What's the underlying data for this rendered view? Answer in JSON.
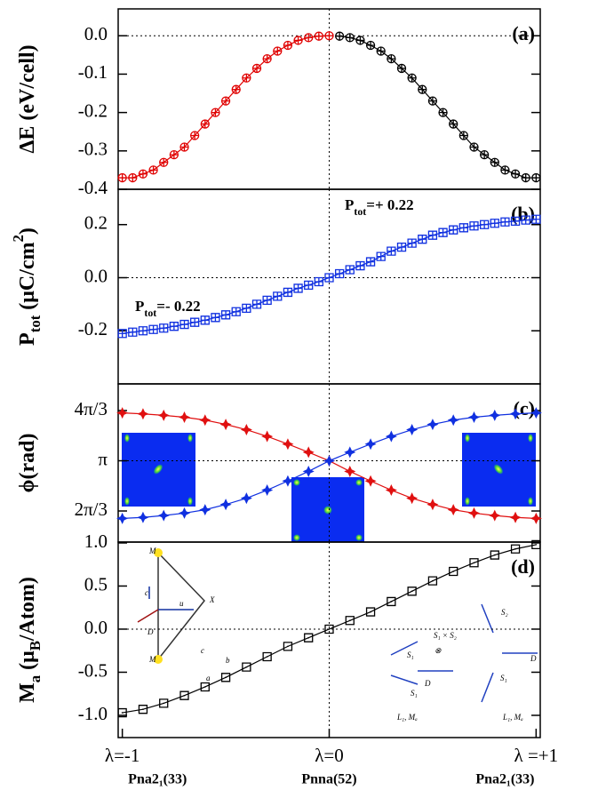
{
  "chart_data": [
    {
      "type": "line",
      "panel": "(a)",
      "ylabel": [
        {
          "text": "ΔE (eV/cell)"
        }
      ],
      "xlim": [
        -1.02,
        1.02
      ],
      "ylim": [
        -0.4,
        0.07
      ],
      "yticks": [
        {
          "value": 0,
          "label": "0.0"
        },
        -0.1,
        -0.2,
        -0.3,
        -0.4
      ],
      "hline": 0,
      "vline": 0,
      "series": [
        {
          "color": "#e00000",
          "marker": "circle",
          "x": [
            -1,
            -0.95,
            -0.9,
            -0.85,
            -0.8,
            -0.75,
            -0.7,
            -0.65,
            -0.6,
            -0.55,
            -0.5,
            -0.45,
            -0.4,
            -0.35,
            -0.3,
            -0.25,
            -0.2,
            -0.15,
            -0.1,
            -0.05,
            0
          ],
          "values": [
            -0.37,
            -0.37,
            -0.36,
            -0.35,
            -0.33,
            -0.31,
            -0.29,
            -0.26,
            -0.23,
            -0.2,
            -0.17,
            -0.14,
            -0.11,
            -0.085,
            -0.06,
            -0.04,
            -0.025,
            -0.012,
            -0.005,
            -0.001,
            0
          ]
        },
        {
          "color": "#000000",
          "marker": "circle",
          "x": [
            0.05,
            0.1,
            0.15,
            0.2,
            0.25,
            0.3,
            0.35,
            0.4,
            0.45,
            0.5,
            0.55,
            0.6,
            0.65,
            0.7,
            0.75,
            0.8,
            0.85,
            0.9,
            0.95,
            1
          ],
          "values": [
            -0.001,
            -0.005,
            -0.012,
            -0.025,
            -0.04,
            -0.06,
            -0.085,
            -0.11,
            -0.14,
            -0.17,
            -0.2,
            -0.23,
            -0.26,
            -0.29,
            -0.31,
            -0.33,
            -0.35,
            -0.36,
            -0.37,
            -0.37
          ]
        }
      ]
    },
    {
      "type": "line",
      "panel": "(b)",
      "ylabel": [
        {
          "text": "P"
        },
        {
          "sub": "tot"
        },
        {
          "text": " (μC/cm"
        },
        {
          "sup": "2"
        },
        {
          "text": ")"
        }
      ],
      "xlim": [
        -1.02,
        1.02
      ],
      "ylim": [
        -0.4,
        0.333
      ],
      "yticks": [
        0.2,
        {
          "value": 0,
          "label": "0.0"
        },
        -0.2
      ],
      "hline": 0,
      "vline": 0,
      "annotations": [
        [
          {
            "text": "P"
          },
          {
            "sub": "tot"
          },
          {
            "text": "=+ 0.22"
          }
        ],
        [
          {
            "text": "P"
          },
          {
            "sub": "tot"
          },
          {
            "text": "=- 0.22"
          }
        ]
      ],
      "series": [
        {
          "color": "#1030e0",
          "marker": "square",
          "x": [
            -1,
            -0.95,
            -0.9,
            -0.85,
            -0.8,
            -0.75,
            -0.7,
            -0.65,
            -0.6,
            -0.55,
            -0.5,
            -0.45,
            -0.4,
            -0.35,
            -0.3,
            -0.25,
            -0.2,
            -0.15,
            -0.1,
            -0.05,
            0,
            0.05,
            0.1,
            0.15,
            0.2,
            0.25,
            0.3,
            0.35,
            0.4,
            0.45,
            0.5,
            0.55,
            0.6,
            0.65,
            0.7,
            0.75,
            0.8,
            0.85,
            0.9,
            0.95,
            1
          ],
          "values": [
            -0.21,
            -0.205,
            -0.2,
            -0.195,
            -0.19,
            -0.183,
            -0.176,
            -0.168,
            -0.16,
            -0.15,
            -0.14,
            -0.128,
            -0.115,
            -0.1,
            -0.085,
            -0.07,
            -0.055,
            -0.04,
            -0.028,
            -0.015,
            0,
            0.015,
            0.03,
            0.045,
            0.06,
            0.08,
            0.1,
            0.115,
            0.13,
            0.145,
            0.16,
            0.17,
            0.18,
            0.188,
            0.195,
            0.2,
            0.205,
            0.21,
            0.213,
            0.217,
            0.22
          ]
        }
      ]
    },
    {
      "type": "line",
      "panel": "(c)",
      "ylabel": [
        {
          "text": "ϕ(rad)"
        }
      ],
      "ylabel_bold": false,
      "xlim": [
        -1.02,
        1.02
      ],
      "ylim": [
        1.446,
        4.745
      ],
      "yticks": [
        {
          "value": 4.18879,
          "label": "4π/3"
        },
        {
          "value": 3.14159,
          "label": "π"
        },
        {
          "value": 2.0944,
          "label": "2π/3"
        }
      ],
      "hline": 3.14159,
      "vline": 0,
      "series": [
        {
          "color": "#e01010",
          "marker": "star",
          "x": [
            -1,
            -0.9,
            -0.8,
            -0.7,
            -0.6,
            -0.5,
            -0.4,
            -0.3,
            -0.2,
            -0.1,
            0,
            0.1,
            0.2,
            0.3,
            0.4,
            0.5,
            0.6,
            0.7,
            0.8,
            0.9,
            1
          ],
          "values": [
            4.14,
            4.12,
            4.09,
            4.05,
            3.99,
            3.9,
            3.79,
            3.65,
            3.49,
            3.32,
            3.14,
            2.92,
            2.72,
            2.53,
            2.36,
            2.23,
            2.12,
            2.05,
            2.0,
            1.96,
            1.94
          ]
        },
        {
          "color": "#1030e0",
          "marker": "star",
          "x": [
            -1,
            -0.9,
            -0.8,
            -0.7,
            -0.6,
            -0.5,
            -0.4,
            -0.3,
            -0.2,
            -0.1,
            0,
            0.1,
            0.2,
            0.3,
            0.4,
            0.5,
            0.6,
            0.7,
            0.8,
            0.9,
            1
          ],
          "values": [
            1.94,
            1.96,
            2.0,
            2.05,
            2.12,
            2.23,
            2.36,
            2.53,
            2.72,
            2.92,
            3.14,
            3.32,
            3.49,
            3.65,
            3.79,
            3.9,
            3.99,
            4.05,
            4.09,
            4.12,
            4.14
          ]
        }
      ]
    },
    {
      "type": "line",
      "panel": "(d)",
      "ylabel": [
        {
          "text": "M"
        },
        {
          "sub": "a"
        },
        {
          "text": " (μ"
        },
        {
          "sub": "B"
        },
        {
          "text": "/Atom)"
        }
      ],
      "xlim": [
        -1.02,
        1.02
      ],
      "ylim": [
        -1.258,
        1.01
      ],
      "yticks": [
        {
          "value": 1,
          "label": "1.0"
        },
        0.5,
        {
          "value": 0,
          "label": "0.0"
        },
        -0.5,
        {
          "value": -1,
          "label": "-1.0"
        }
      ],
      "xticks": [
        {
          "value": -1,
          "label": "λ=-1"
        },
        {
          "value": 0,
          "label": "λ=0"
        },
        {
          "value": 1,
          "label": "λ =+1"
        }
      ],
      "xgroups": [
        "Pna2₁(33)",
        "Pnna(52)",
        "Pna2₁(33)"
      ],
      "hline": 0,
      "vline": 0,
      "inset_labels": [
        "M",
        "M",
        "X",
        "c",
        "u",
        "D",
        "c",
        "b",
        "a",
        "S₁",
        "S₁ × S₂",
        "⊗",
        "D",
        "S₁",
        "L₁, Mₐ",
        "S₂",
        "D",
        "S₁",
        "L₁, Mₐ"
      ],
      "series": [
        {
          "color": "#000000",
          "marker": "dotsquare",
          "x": [
            -1,
            -0.9,
            -0.8,
            -0.7,
            -0.6,
            -0.5,
            -0.4,
            -0.3,
            -0.2,
            -0.1,
            0,
            0.1,
            0.2,
            0.3,
            0.4,
            0.5,
            0.6,
            0.7,
            0.8,
            0.9,
            1
          ],
          "values": [
            -0.97,
            -0.93,
            -0.86,
            -0.77,
            -0.67,
            -0.56,
            -0.44,
            -0.32,
            -0.2,
            -0.1,
            0,
            0.1,
            0.2,
            0.32,
            0.44,
            0.56,
            0.67,
            0.77,
            0.86,
            0.93,
            0.98
          ]
        }
      ]
    }
  ]
}
